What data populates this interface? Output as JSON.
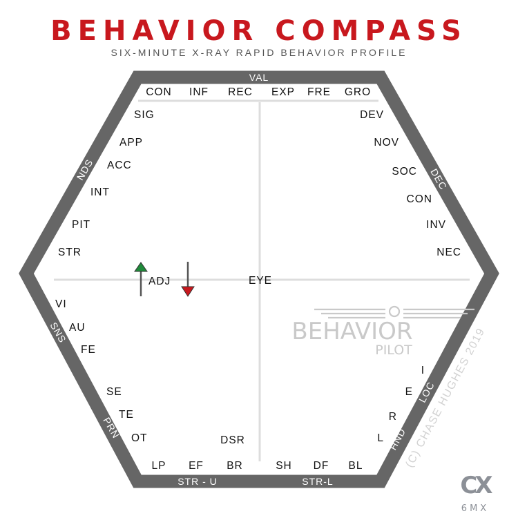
{
  "header": {
    "title": "BEHAVIOR COMPASS",
    "subtitle": "SIX-MINUTE X-RAY RAPID BEHAVIOR PROFILE"
  },
  "colors": {
    "title_red": "#c8181e",
    "frame_gray": "#666666",
    "up_arrow_green": "#1f8a3a",
    "down_arrow_red": "#c8181e"
  },
  "bands": {
    "top": "VAL",
    "upper_left": "NDS",
    "upper_right": "DEC",
    "lower_left_upper": "SNS",
    "lower_left_lower": "PRN",
    "lower_right_upper": "LOC",
    "lower_right_lower": "HND",
    "bottom_left": "STR - U",
    "bottom_right": "STR-L"
  },
  "labels": {
    "top_row": [
      "CON",
      "INF",
      "REC",
      "EXP",
      "FRE",
      "GRO"
    ],
    "upper_left": [
      "SIG",
      "APP",
      "ACC",
      "INT",
      "PIT",
      "STR"
    ],
    "upper_right": [
      "DEV",
      "NOV",
      "SOC",
      "CON",
      "INV",
      "NEC"
    ],
    "lower_left": [
      "VI",
      "AU",
      "FE",
      "SE",
      "TE",
      "OT"
    ],
    "lower_right": [
      "I",
      "E",
      "R",
      "L"
    ],
    "bottom_row": [
      "LP",
      "EF",
      "BR",
      "SH",
      "DF",
      "BL"
    ],
    "center": "EYE",
    "adj": "ADJ",
    "dsr": "DSR"
  },
  "indicators": {
    "up_arrow": "green-up-arrow",
    "down_arrow": "red-down-arrow"
  },
  "watermark": {
    "brand_top": "BEHAVIOR",
    "brand_bottom": "PILOT",
    "copyright": "(C) CHASE HUGHES 2019"
  },
  "logo": {
    "mark": "CX",
    "text": "6MX"
  }
}
